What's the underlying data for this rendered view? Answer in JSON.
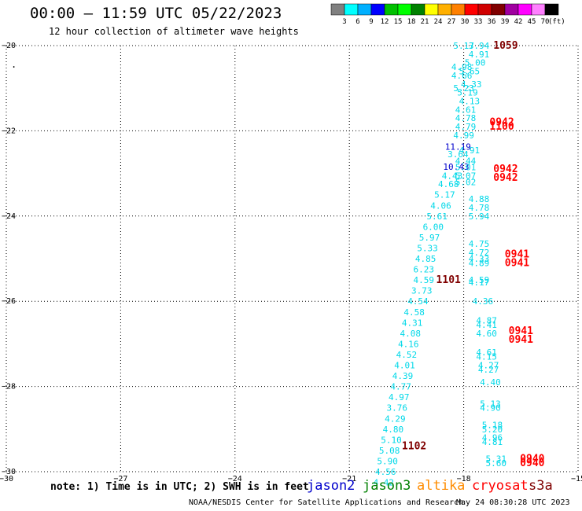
{
  "header": {
    "title": "00:00 — 11:59 UTC 05/22/2023",
    "subtitle": "12 hour collection of altimeter wave heights"
  },
  "colorbar": {
    "labels": [
      "3",
      "6",
      "9",
      "12",
      "15",
      "18",
      "21",
      "24",
      "27",
      "30",
      "33",
      "36",
      "39",
      "42",
      "45",
      "70"
    ],
    "unit": "(ft)",
    "colors": [
      "#808080",
      "#00ffff",
      "#00b0ff",
      "#0000ff",
      "#00c000",
      "#00ff00",
      "#008000",
      "#ffff00",
      "#ffb000",
      "#ff8000",
      "#ff0000",
      "#d00000",
      "#800000",
      "#a000a0",
      "#ff00ff",
      "#ff80ff",
      "#000000"
    ]
  },
  "chart_data": {
    "type": "scatter",
    "title": "00:00 — 11:59 UTC 05/22/2023",
    "xlim": [
      -30,
      -15
    ],
    "ylim": [
      -30,
      -20
    ],
    "x_ticks": [
      -30,
      -27,
      -24,
      -21,
      -18,
      -15
    ],
    "y_ticks": [
      -20,
      -22,
      -24,
      -26,
      -28,
      -30
    ],
    "grid": true,
    "series": [
      {
        "name": "jason2",
        "points": [
          {
            "x": -18.15,
            "y": -22.37,
            "label": "11.19"
          },
          {
            "x": -18.2,
            "y": -22.84,
            "label": "10.43"
          }
        ]
      },
      {
        "name": "jason3",
        "points": [
          {
            "x": -18.0,
            "y": -20.0,
            "label": "5.17"
          },
          {
            "x": -17.6,
            "y": -20.0,
            "label": "3.94"
          },
          {
            "x": -17.6,
            "y": -20.2,
            "label": "4.91"
          },
          {
            "x": -17.7,
            "y": -20.4,
            "label": "5.00"
          },
          {
            "x": -18.05,
            "y": -20.5,
            "label": "4.98"
          },
          {
            "x": -17.85,
            "y": -20.6,
            "label": "5.65"
          },
          {
            "x": -18.05,
            "y": -20.7,
            "label": "4.66"
          },
          {
            "x": -17.8,
            "y": -20.9,
            "label": "4.33"
          },
          {
            "x": -18.0,
            "y": -21.0,
            "label": "5.23"
          },
          {
            "x": -17.9,
            "y": -21.1,
            "label": "5.19"
          },
          {
            "x": -17.85,
            "y": -21.3,
            "label": "4.13"
          },
          {
            "x": -17.95,
            "y": -21.5,
            "label": "4.61"
          },
          {
            "x": -17.95,
            "y": -21.7,
            "label": "4.78"
          },
          {
            "x": -17.95,
            "y": -21.9,
            "label": "4.79"
          },
          {
            "x": -18.0,
            "y": -22.1,
            "label": "4.99"
          },
          {
            "x": -17.85,
            "y": -22.45,
            "label": "4.91"
          },
          {
            "x": -18.15,
            "y": -22.55,
            "label": "3.64"
          },
          {
            "x": -17.95,
            "y": -22.7,
            "label": "4.44"
          },
          {
            "x": -17.95,
            "y": -22.85,
            "label": "5.01"
          },
          {
            "x": -18.3,
            "y": -23.05,
            "label": "4.43"
          },
          {
            "x": -17.95,
            "y": -23.05,
            "label": "5.07"
          },
          {
            "x": -17.95,
            "y": -23.2,
            "label": "5.02"
          },
          {
            "x": -18.4,
            "y": -23.25,
            "label": "4.68"
          },
          {
            "x": -18.5,
            "y": -23.5,
            "label": "5.17"
          },
          {
            "x": -17.6,
            "y": -23.6,
            "label": "4.88"
          },
          {
            "x": -18.6,
            "y": -23.75,
            "label": "4.06"
          },
          {
            "x": -17.6,
            "y": -23.8,
            "label": "4.78"
          },
          {
            "x": -18.7,
            "y": -24.0,
            "label": "5.61"
          },
          {
            "x": -17.6,
            "y": -24.0,
            "label": "5.94"
          },
          {
            "x": -18.8,
            "y": -24.25,
            "label": "6.00"
          },
          {
            "x": -18.9,
            "y": -24.5,
            "label": "5.97"
          },
          {
            "x": -17.6,
            "y": -24.65,
            "label": "4.75"
          },
          {
            "x": -18.95,
            "y": -24.75,
            "label": "5.33"
          },
          {
            "x": -17.6,
            "y": -24.85,
            "label": "4.72"
          },
          {
            "x": -17.6,
            "y": -25.0,
            "label": "4.33"
          },
          {
            "x": -19.0,
            "y": -25.0,
            "label": "4.85"
          },
          {
            "x": -17.6,
            "y": -25.1,
            "label": "4.89"
          },
          {
            "x": -19.05,
            "y": -25.25,
            "label": "6.23"
          },
          {
            "x": -19.05,
            "y": -25.5,
            "label": "4.59"
          },
          {
            "x": -17.6,
            "y": -25.5,
            "label": "4.59"
          },
          {
            "x": -17.6,
            "y": -25.55,
            "label": "4.17"
          },
          {
            "x": -19.1,
            "y": -25.75,
            "label": "3.73"
          },
          {
            "x": -19.2,
            "y": -26.0,
            "label": "4.54"
          },
          {
            "x": -17.5,
            "y": -26.0,
            "label": "4.36"
          },
          {
            "x": -19.3,
            "y": -26.25,
            "label": "4.58"
          },
          {
            "x": -19.35,
            "y": -26.5,
            "label": "4.31"
          },
          {
            "x": -17.4,
            "y": -26.45,
            "label": "4.87"
          },
          {
            "x": -17.4,
            "y": -26.55,
            "label": "4.41"
          },
          {
            "x": -19.4,
            "y": -26.75,
            "label": "4.08"
          },
          {
            "x": -17.4,
            "y": -26.75,
            "label": "4.60"
          },
          {
            "x": -19.45,
            "y": -27.0,
            "label": "4.16"
          },
          {
            "x": -19.5,
            "y": -27.25,
            "label": "4.52"
          },
          {
            "x": -17.4,
            "y": -27.2,
            "label": "4.61"
          },
          {
            "x": -17.4,
            "y": -27.3,
            "label": "4.15"
          },
          {
            "x": -19.55,
            "y": -27.5,
            "label": "4.01"
          },
          {
            "x": -17.35,
            "y": -27.5,
            "label": "4.27"
          },
          {
            "x": -17.35,
            "y": -27.6,
            "label": "4.27"
          },
          {
            "x": -19.6,
            "y": -27.75,
            "label": "4.39"
          },
          {
            "x": -19.65,
            "y": -28.0,
            "label": "4.77"
          },
          {
            "x": -17.3,
            "y": -27.9,
            "label": "4.40"
          },
          {
            "x": -19.7,
            "y": -28.25,
            "label": "4.97"
          },
          {
            "x": -19.75,
            "y": -28.5,
            "label": "3.76"
          },
          {
            "x": -17.3,
            "y": -28.4,
            "label": "5.13"
          },
          {
            "x": -17.3,
            "y": -28.5,
            "label": "4.90"
          },
          {
            "x": -19.8,
            "y": -28.75,
            "label": "4.29"
          },
          {
            "x": -19.85,
            "y": -29.0,
            "label": "4.80"
          },
          {
            "x": -17.25,
            "y": -28.9,
            "label": "5.18"
          },
          {
            "x": -17.25,
            "y": -29.0,
            "label": "5.20"
          },
          {
            "x": -19.9,
            "y": -29.25,
            "label": "5.10"
          },
          {
            "x": -17.25,
            "y": -29.2,
            "label": "4.96"
          },
          {
            "x": -17.25,
            "y": -29.3,
            "label": "4.81"
          },
          {
            "x": -19.95,
            "y": -29.5,
            "label": "5.08"
          },
          {
            "x": -20.0,
            "y": -29.75,
            "label": "5.90"
          },
          {
            "x": -17.15,
            "y": -29.7,
            "label": "5.31"
          },
          {
            "x": -17.15,
            "y": -29.8,
            "label": "5.60"
          },
          {
            "x": -20.05,
            "y": -30.0,
            "label": "4.56"
          },
          {
            "x": -20.1,
            "y": -30.25,
            "label": "4.42"
          }
        ]
      },
      {
        "name": "altika",
        "points": []
      },
      {
        "name": "cryosat",
        "points": [
          {
            "x": -17.0,
            "y": -21.8,
            "label": "0942"
          },
          {
            "x": -17.0,
            "y": -21.9,
            "label": "1100"
          },
          {
            "x": -16.9,
            "y": -22.9,
            "label": "0942"
          },
          {
            "x": -16.9,
            "y": -23.1,
            "label": "0942"
          },
          {
            "x": -16.6,
            "y": -24.9,
            "label": "0941"
          },
          {
            "x": -16.6,
            "y": -25.1,
            "label": "0941"
          },
          {
            "x": -16.5,
            "y": -26.7,
            "label": "0941"
          },
          {
            "x": -16.5,
            "y": -26.9,
            "label": "0941"
          },
          {
            "x": -16.2,
            "y": -29.7,
            "label": "0940"
          },
          {
            "x": -16.2,
            "y": -29.8,
            "label": "0940"
          }
        ]
      },
      {
        "name": "s3a",
        "points": [
          {
            "x": -16.9,
            "y": -20.0,
            "label": "1059"
          },
          {
            "x": -18.4,
            "y": -25.5,
            "label": "1101"
          },
          {
            "x": -19.3,
            "y": -29.4,
            "label": "1102"
          }
        ]
      }
    ]
  },
  "legend": {
    "note": "note: 1) Time is in UTC; 2) SWH is in feet",
    "items": [
      {
        "name": "jason2",
        "color": "#0000cc"
      },
      {
        "name": "jason3",
        "color": "#008000"
      },
      {
        "name": "altika",
        "color": "#ff8c00"
      },
      {
        "name": "cryosat",
        "color": "#ff0000"
      },
      {
        "name": "s3a",
        "color": "#800000"
      }
    ]
  },
  "footer": {
    "credit": "NOAA/NESDIS Center for Satellite Applications and Research",
    "timestamp": "May 24 08:30:28 UTC 2023"
  },
  "marks": {
    "dot": "."
  }
}
